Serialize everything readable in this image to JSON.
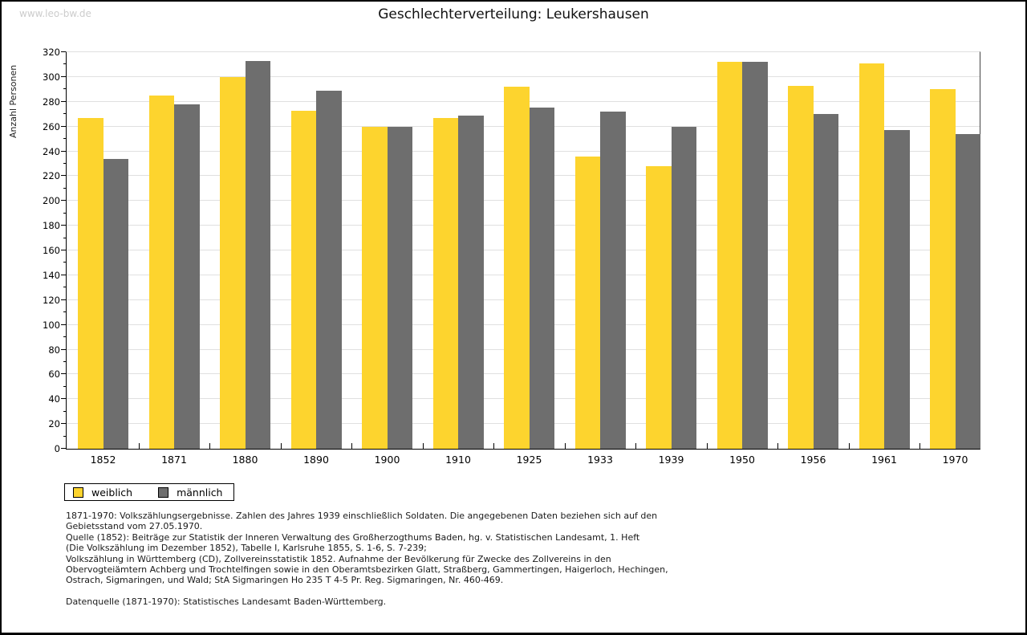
{
  "watermark": "www.leo-bw.de",
  "title": "Geschlechterverteilung: Leukershausen",
  "chart_data": {
    "type": "bar",
    "title": "Geschlechterverteilung: Leukershausen",
    "ylabel": "Anzahl Personen",
    "xlabel": "",
    "ylim": [
      0,
      320
    ],
    "ytick_step": 20,
    "ytick_minor": 10,
    "grid": true,
    "legend_position": "bottom-left",
    "categories": [
      "1852",
      "1871",
      "1880",
      "1890",
      "1900",
      "1910",
      "1925",
      "1933",
      "1939",
      "1950",
      "1956",
      "1961",
      "1970"
    ],
    "series": [
      {
        "name": "weiblich",
        "color": "#FDD42E",
        "values": [
          267,
          285,
          300,
          273,
          260,
          267,
          292,
          236,
          228,
          312,
          293,
          311,
          290
        ]
      },
      {
        "name": "männlich",
        "color": "#6E6E6E",
        "values": [
          234,
          278,
          313,
          289,
          260,
          269,
          275,
          272,
          260,
          312,
          270,
          257,
          254
        ]
      }
    ]
  },
  "colors": {
    "female": "#FDD42E",
    "male": "#6E6E6E",
    "gridline": "#E0E0E0",
    "axis": "#000000",
    "watermark": "#CCCCCC"
  },
  "footer": {
    "lines": [
      "1871-1970: Volkszählungsergebnisse. Zahlen des Jahres 1939 einschließlich Soldaten. Die angegebenen Daten beziehen sich auf den",
      "Gebietsstand vom 27.05.1970.",
      "Quelle (1852): Beiträge zur Statistik der Inneren Verwaltung des Großherzogthums Baden, hg. v. Statistischen Landesamt, 1. Heft",
      "(Die Volkszählung im Dezember 1852), Tabelle I, Karlsruhe 1855, S. 1-6, S. 7-239;",
      "Volkszählung in Württemberg (CD), Zollvereinsstatistik 1852. Aufnahme der Bevölkerung für Zwecke des Zollvereins in den",
      "Obervogteiämtern Achberg und Trochtelfingen sowie in den Oberamtsbezirken Glatt, Straßberg, Gammertingen, Haigerloch, Hechingen,",
      "Ostrach, Sigmaringen, und Wald; StA Sigmaringen Ho 235 T 4-5 Pr. Reg. Sigmaringen, Nr. 460-469."
    ],
    "datasource": "Datenquelle (1871-1970): Statistisches Landesamt Baden-Württemberg."
  }
}
